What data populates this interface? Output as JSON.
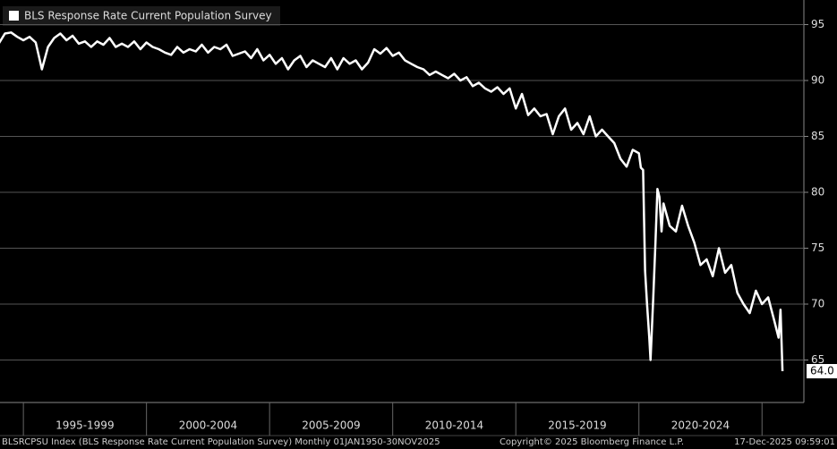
{
  "chart_data": {
    "type": "line",
    "legend": "BLS Response Rate Current Population Survey",
    "x": [
      1994,
      1994.25,
      1994.5,
      1994.75,
      1995,
      1995.25,
      1995.5,
      1995.75,
      1996,
      1996.25,
      1996.5,
      1996.75,
      1997,
      1997.25,
      1997.5,
      1997.75,
      1998,
      1998.25,
      1998.5,
      1998.75,
      1999,
      1999.25,
      1999.5,
      1999.75,
      2000,
      2000.25,
      2000.5,
      2000.75,
      2001,
      2001.25,
      2001.5,
      2001.75,
      2002,
      2002.25,
      2002.5,
      2002.75,
      2003,
      2003.25,
      2003.5,
      2003.75,
      2004,
      2004.25,
      2004.5,
      2004.75,
      2005,
      2005.25,
      2005.5,
      2005.75,
      2006,
      2006.25,
      2006.5,
      2006.75,
      2007,
      2007.25,
      2007.5,
      2007.75,
      2008,
      2008.25,
      2008.5,
      2008.75,
      2009,
      2009.25,
      2009.5,
      2009.75,
      2010,
      2010.25,
      2010.5,
      2010.75,
      2011,
      2011.25,
      2011.5,
      2011.75,
      2012,
      2012.25,
      2012.5,
      2012.75,
      2013,
      2013.25,
      2013.5,
      2013.75,
      2014,
      2014.25,
      2014.5,
      2014.75,
      2015,
      2015.25,
      2015.5,
      2015.75,
      2016,
      2016.25,
      2016.5,
      2016.75,
      2017,
      2017.25,
      2017.5,
      2017.75,
      2018,
      2018.25,
      2018.5,
      2018.75,
      2019,
      2019.25,
      2019.5,
      2019.75,
      2020,
      2020.08,
      2020.17,
      2020.25,
      2020.33,
      2020.42,
      2020.47,
      2020.58,
      2020.67,
      2020.75,
      2020.83,
      2020.92,
      2021,
      2021.25,
      2021.5,
      2021.75,
      2022,
      2022.25,
      2022.5,
      2022.75,
      2023,
      2023.25,
      2023.5,
      2023.75,
      2024,
      2024.25,
      2024.5,
      2024.75,
      2025,
      2025.25,
      2025.5,
      2025.67,
      2025.75,
      2025.83
    ],
    "series": [
      {
        "name": "BLS Response Rate Current Population Survey",
        "color": "#ffffff",
        "values": [
          93.3,
          94.2,
          94.3,
          93.9,
          93.6,
          93.9,
          93.4,
          91.0,
          93.0,
          93.8,
          94.2,
          93.6,
          94.0,
          93.3,
          93.5,
          93.0,
          93.5,
          93.2,
          93.8,
          93.0,
          93.3,
          93.0,
          93.5,
          92.8,
          93.4,
          93.0,
          92.8,
          92.5,
          92.3,
          93.0,
          92.5,
          92.8,
          92.6,
          93.2,
          92.5,
          93.0,
          92.8,
          93.2,
          92.2,
          92.4,
          92.6,
          92.0,
          92.8,
          91.8,
          92.3,
          91.5,
          92.0,
          91.0,
          91.8,
          92.2,
          91.2,
          91.8,
          91.5,
          91.2,
          92.0,
          91.0,
          92.0,
          91.5,
          91.8,
          91.0,
          91.6,
          92.8,
          92.4,
          92.9,
          92.2,
          92.5,
          91.8,
          91.5,
          91.2,
          91.0,
          90.5,
          90.8,
          90.5,
          90.2,
          90.6,
          90.0,
          90.3,
          89.5,
          89.8,
          89.3,
          89.0,
          89.4,
          88.8,
          89.3,
          87.5,
          88.8,
          86.9,
          87.5,
          86.8,
          87.0,
          85.2,
          86.8,
          87.5,
          85.6,
          86.2,
          85.2,
          86.8,
          85.0,
          85.6,
          85.0,
          84.4,
          83.0,
          82.3,
          83.8,
          83.5,
          82.2,
          82.0,
          73.0,
          70.0,
          67.0,
          65.0,
          70.5,
          75.5,
          80.3,
          79.6,
          76.5,
          79.0,
          77.0,
          76.5,
          78.8,
          77.0,
          75.5,
          73.5,
          74.0,
          72.5,
          75.0,
          72.8,
          73.5,
          71.0,
          70.0,
          69.2,
          71.2,
          70.0,
          70.6,
          68.5,
          67.0,
          69.5,
          64.0
        ]
      }
    ],
    "last_value_label": "64.0",
    "xlim": [
      1994.05,
      2026.7
    ],
    "xticks": [
      1995,
      2000,
      2005,
      2010,
      2015,
      2020,
      2025
    ],
    "x_period_labels": [
      "1995-1999",
      "2000-2004",
      "2005-2009",
      "2010-2014",
      "2015-2019",
      "2020-2024"
    ],
    "ylim": [
      61.2,
      97.2
    ],
    "yticks": [
      65,
      70,
      75,
      80,
      85,
      90,
      95
    ],
    "grid": true,
    "footer": {
      "left": "BLSRCPSU Index (BLS Response Rate Current Population Survey) Monthly 01JAN1950-30NOV2025",
      "center": "Copyright© 2025 Bloomberg Finance L.P.",
      "right": "17-Dec-2025 09:59:01"
    }
  }
}
